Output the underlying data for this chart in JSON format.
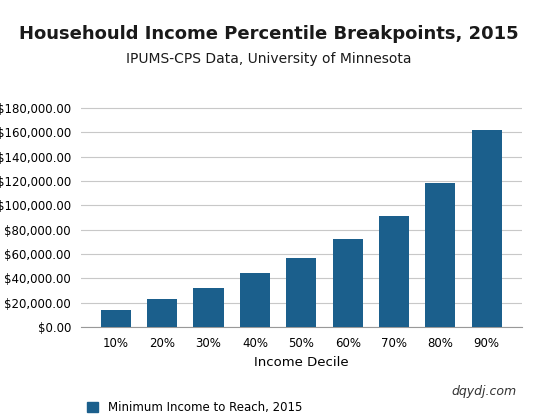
{
  "title": "Househould Income Percentile Breakpoints, 2015",
  "subtitle": "IPUMS-CPS Data, University of Minnesota",
  "xlabel": "Income Decile",
  "ylabel": "Minimum Income to Reach",
  "legend_label": "Minimum Income to Reach, 2015",
  "watermark": "dqydj.com",
  "categories": [
    "10%",
    "20%",
    "30%",
    "40%",
    "50%",
    "60%",
    "70%",
    "80%",
    "90%"
  ],
  "values": [
    14000,
    23000,
    32000,
    44000,
    57000,
    72000,
    91000,
    118000,
    162000
  ],
  "bar_color": "#1b5f8c",
  "ylim": [
    0,
    200000
  ],
  "yticks": [
    0,
    20000,
    40000,
    60000,
    80000,
    100000,
    120000,
    140000,
    160000,
    180000
  ],
  "background_color": "#ffffff",
  "grid_color": "#c8c8c8",
  "title_fontsize": 13,
  "subtitle_fontsize": 10,
  "axis_label_fontsize": 9.5,
  "tick_fontsize": 8.5,
  "legend_fontsize": 8.5,
  "watermark_fontsize": 9
}
